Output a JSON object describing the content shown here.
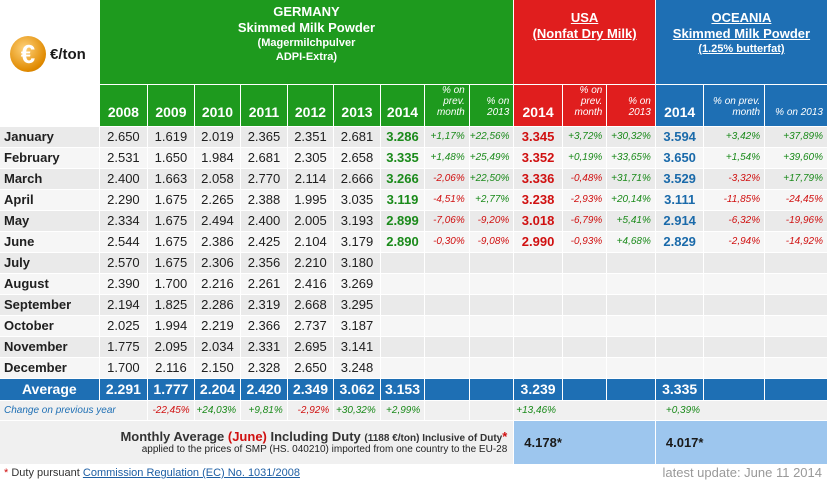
{
  "unit_label": "€/ton",
  "euro_symbol": "€",
  "germany": {
    "title1": "GERMANY",
    "title2": "Skimmed Milk Powder",
    "sub1": "(Magermilchpulver",
    "sub2": "ADPI-Extra)"
  },
  "usa": {
    "title1": "USA",
    "title2": "(Nonfat Dry Milk)"
  },
  "oceania": {
    "title1": "OCEANIA",
    "title2": "Skimmed Milk Powder",
    "sub1": "(1.25% butterfat)"
  },
  "years": [
    "2008",
    "2009",
    "2010",
    "2011",
    "2012",
    "2013",
    "2014"
  ],
  "pct_headers": {
    "prev_month": "% on prev. month",
    "on_2013": "% on 2013"
  },
  "col_2014": "2014",
  "rows": [
    {
      "month": "January",
      "v": [
        "2.650",
        "1.619",
        "2.019",
        "2.365",
        "2.351",
        "2.681"
      ],
      "g14": "3.286",
      "gpm": "+1,17%",
      "gy": "+22,56%",
      "u14": "3.345",
      "upm": "+3,72%",
      "uy": "+30,32%",
      "o14": "3.594",
      "opm": "+3,42%",
      "oy": "+37,89%"
    },
    {
      "month": "February",
      "v": [
        "2.531",
        "1.650",
        "1.984",
        "2.681",
        "2.305",
        "2.658"
      ],
      "g14": "3.335",
      "gpm": "+1,48%",
      "gy": "+25,49%",
      "u14": "3.352",
      "upm": "+0,19%",
      "uy": "+33,65%",
      "o14": "3.650",
      "opm": "+1,54%",
      "oy": "+39,60%"
    },
    {
      "month": "March",
      "v": [
        "2.400",
        "1.663",
        "2.058",
        "2.770",
        "2.114",
        "2.666"
      ],
      "g14": "3.266",
      "gpm": "-2,06%",
      "gy": "+22,50%",
      "u14": "3.336",
      "upm": "-0,48%",
      "uy": "+31,71%",
      "o14": "3.529",
      "opm": "-3,32%",
      "oy": "+17,79%"
    },
    {
      "month": "April",
      "v": [
        "2.290",
        "1.675",
        "2.265",
        "2.388",
        "1.995",
        "3.035"
      ],
      "g14": "3.119",
      "gpm": "-4,51%",
      "gy": "+2,77%",
      "u14": "3.238",
      "upm": "-2,93%",
      "uy": "+20,14%",
      "o14": "3.111",
      "opm": "-11,85%",
      "oy": "-24,45%"
    },
    {
      "month": "May",
      "v": [
        "2.334",
        "1.675",
        "2.494",
        "2.400",
        "2.005",
        "3.193"
      ],
      "g14": "2.899",
      "gpm": "-7,06%",
      "gy": "-9,20%",
      "u14": "3.018",
      "upm": "-6,79%",
      "uy": "+5,41%",
      "o14": "2.914",
      "opm": "-6,32%",
      "oy": "-19,96%"
    },
    {
      "month": "June",
      "v": [
        "2.544",
        "1.675",
        "2.386",
        "2.425",
        "2.104",
        "3.179"
      ],
      "g14": "2.890",
      "gpm": "-0,30%",
      "gy": "-9,08%",
      "u14": "2.990",
      "upm": "-0,93%",
      "uy": "+4,68%",
      "o14": "2.829",
      "opm": "-2,94%",
      "oy": "-14,92%"
    },
    {
      "month": "July",
      "v": [
        "2.570",
        "1.675",
        "2.306",
        "2.356",
        "2.210",
        "3.180"
      ],
      "g14": "",
      "gpm": "",
      "gy": "",
      "u14": "",
      "upm": "",
      "uy": "",
      "o14": "",
      "opm": "",
      "oy": ""
    },
    {
      "month": "August",
      "v": [
        "2.390",
        "1.700",
        "2.216",
        "2.261",
        "2.416",
        "3.269"
      ],
      "g14": "",
      "gpm": "",
      "gy": "",
      "u14": "",
      "upm": "",
      "uy": "",
      "o14": "",
      "opm": "",
      "oy": ""
    },
    {
      "month": "September",
      "v": [
        "2.194",
        "1.825",
        "2.286",
        "2.319",
        "2.668",
        "3.295"
      ],
      "g14": "",
      "gpm": "",
      "gy": "",
      "u14": "",
      "upm": "",
      "uy": "",
      "o14": "",
      "opm": "",
      "oy": ""
    },
    {
      "month": "October",
      "v": [
        "2.025",
        "1.994",
        "2.219",
        "2.366",
        "2.737",
        "3.187"
      ],
      "g14": "",
      "gpm": "",
      "gy": "",
      "u14": "",
      "upm": "",
      "uy": "",
      "o14": "",
      "opm": "",
      "oy": ""
    },
    {
      "month": "November",
      "v": [
        "1.775",
        "2.095",
        "2.034",
        "2.331",
        "2.695",
        "3.141"
      ],
      "g14": "",
      "gpm": "",
      "gy": "",
      "u14": "",
      "upm": "",
      "uy": "",
      "o14": "",
      "opm": "",
      "oy": ""
    },
    {
      "month": "December",
      "v": [
        "1.700",
        "2.116",
        "2.150",
        "2.328",
        "2.650",
        "3.248"
      ],
      "g14": "",
      "gpm": "",
      "gy": "",
      "u14": "",
      "upm": "",
      "uy": "",
      "o14": "",
      "opm": "",
      "oy": ""
    }
  ],
  "average": {
    "label": "Average",
    "values": [
      "2.291",
      "1.777",
      "2.204",
      "2.420",
      "2.349",
      "3.062",
      "3.153"
    ],
    "usa": "3.239",
    "oceania": "3.335"
  },
  "change": {
    "label": "Change on previous year",
    "values": [
      "-22,45%",
      "+24,03%",
      "+9,81%",
      "-2,92%",
      "+30,32%",
      "+2,99%"
    ],
    "usa": "+13,46%",
    "oceania": "+0,39%"
  },
  "duty": {
    "line1_a": "Monthly Average",
    "line1_june": "(June)",
    "line1_b": "Including Duty",
    "line1_small": "(1188 €/ton) Inclusive of Duty",
    "line1_star": "*",
    "line2": "applied to the prices of SMP (HS. 040210) imported from one country to the EU-28",
    "usa": "4.178*",
    "oceania": "4.017*"
  },
  "footer": {
    "asterisk": "*",
    "note_text": "Duty pursuant",
    "link_text": "Commission Regulation (EC) No. 1031/2008",
    "update": "latest update: June 11 2014"
  },
  "colors": {
    "germany": "#1e9a1e",
    "usa": "#e01e1e",
    "oceania": "#1e6fb4",
    "duty_box": "#9dc6ee"
  }
}
